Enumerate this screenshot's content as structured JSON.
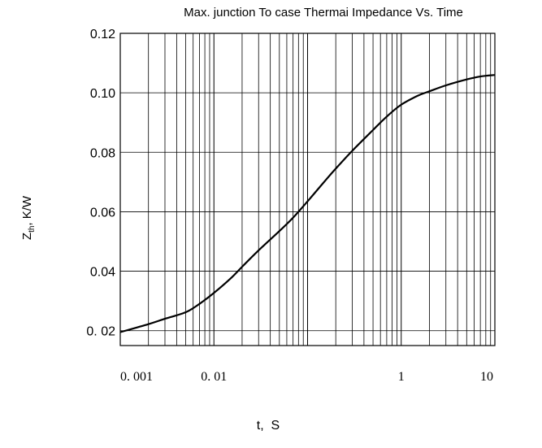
{
  "chart_data": {
    "type": "line",
    "title": "Max.  junction To case Thermai  Impedance Vs. Time",
    "xlabel": "t,  S",
    "ylabel_main": "Z",
    "ylabel_sub": "th",
    "ylabel_unit": ", K/W",
    "xscale": "log",
    "xlim": [
      0.001,
      10
    ],
    "ylim": [
      0.015,
      0.12
    ],
    "grid": true,
    "x_ticks": [
      {
        "value": 0.001,
        "label": "0. 001"
      },
      {
        "value": 0.01,
        "label": "0. 01"
      },
      {
        "value": 1,
        "label": "1"
      },
      {
        "value": 10,
        "label": "10"
      }
    ],
    "y_ticks": [
      {
        "value": 0.02,
        "label": "0. 02"
      },
      {
        "value": 0.04,
        "label": "0.04"
      },
      {
        "value": 0.06,
        "label": "0.06"
      },
      {
        "value": 0.08,
        "label": "0.08"
      },
      {
        "value": 0.1,
        "label": "0.10"
      },
      {
        "value": 0.12,
        "label": "0.12"
      }
    ],
    "series": [
      {
        "color": "#000000",
        "x": [
          0.001,
          0.002,
          0.003,
          0.005,
          0.007,
          0.01,
          0.015,
          0.02,
          0.03,
          0.05,
          0.07,
          0.1,
          0.15,
          0.2,
          0.3,
          0.5,
          0.7,
          1,
          1.5,
          2,
          3,
          5,
          7,
          10
        ],
        "y": [
          0.0195,
          0.0222,
          0.024,
          0.0262,
          0.029,
          0.0327,
          0.0375,
          0.0415,
          0.047,
          0.0535,
          0.058,
          0.0635,
          0.07,
          0.0745,
          0.0805,
          0.0875,
          0.092,
          0.096,
          0.099,
          0.1005,
          0.1025,
          0.1045,
          0.1055,
          0.106
        ]
      }
    ]
  }
}
